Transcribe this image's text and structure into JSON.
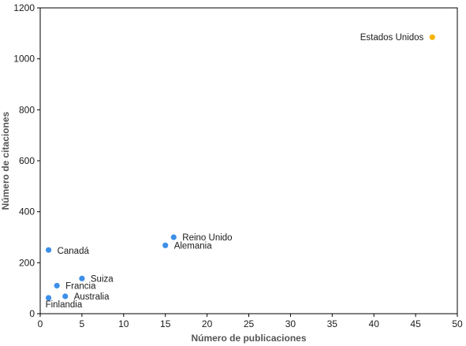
{
  "chart_data": {
    "type": "scatter",
    "xlabel": "Número de publicaciones",
    "ylabel": "Número de citaciones",
    "xlim": [
      0,
      50
    ],
    "ylim": [
      0,
      1200
    ],
    "x_ticks": [
      0,
      5,
      10,
      15,
      20,
      25,
      30,
      35,
      40,
      45,
      50
    ],
    "y_ticks": [
      0,
      200,
      400,
      600,
      800,
      1000,
      1200
    ],
    "grid": false,
    "colors": {
      "default": "#3d8fe8",
      "highlight": "#f7b500"
    },
    "points": [
      {
        "label": "Estados Unidos",
        "x": 47,
        "y": 1085,
        "highlight": true
      },
      {
        "label": "Reino Unido",
        "x": 16,
        "y": 300,
        "highlight": false
      },
      {
        "label": "Alemania",
        "x": 15,
        "y": 268,
        "highlight": false
      },
      {
        "label": "Canadá",
        "x": 1,
        "y": 250,
        "highlight": false
      },
      {
        "label": "Suiza",
        "x": 5,
        "y": 138,
        "highlight": false
      },
      {
        "label": "Francia",
        "x": 2,
        "y": 110,
        "highlight": false
      },
      {
        "label": "Australia",
        "x": 3,
        "y": 68,
        "highlight": false
      },
      {
        "label": "Finlandia",
        "x": 1,
        "y": 62,
        "highlight": false
      }
    ]
  }
}
